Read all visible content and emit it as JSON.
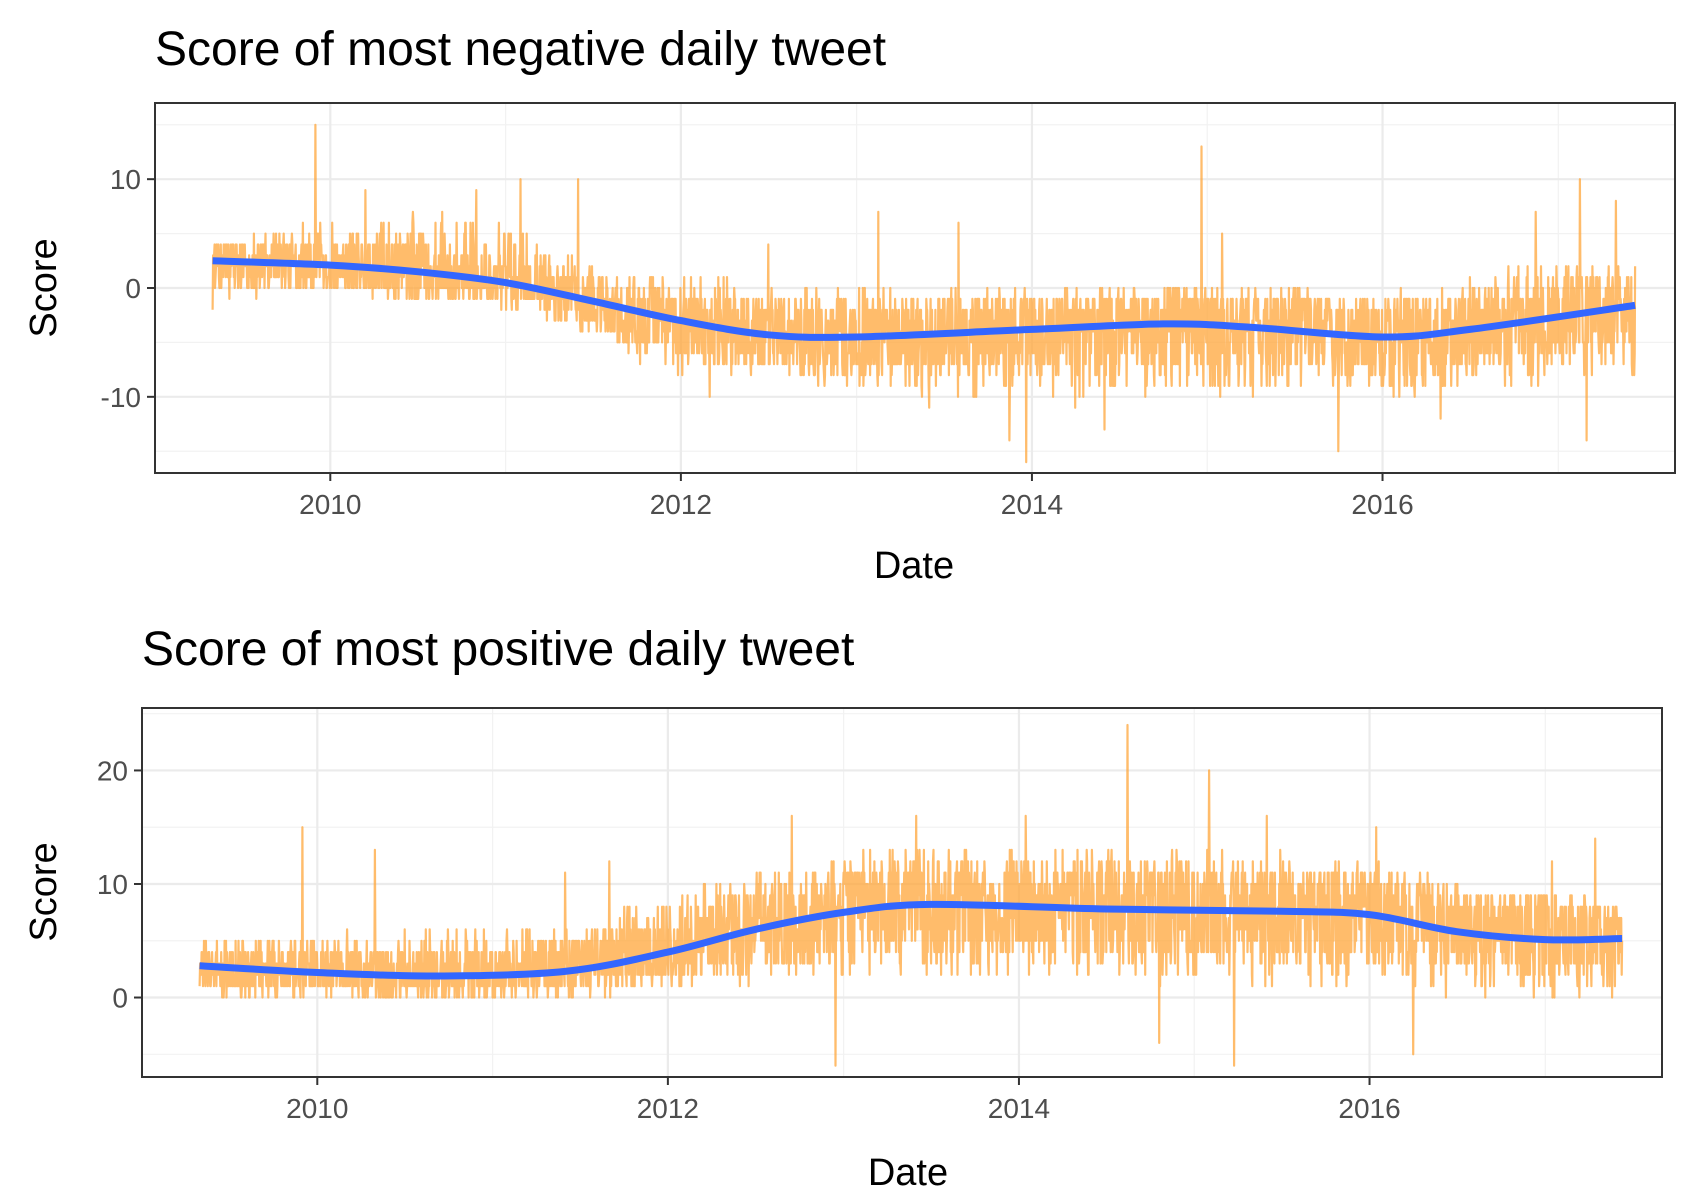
{
  "chart_data": [
    {
      "type": "line",
      "title": "Score of most negative daily tweet",
      "xlabel": "Date",
      "ylabel": "Score",
      "xlim": [
        "2009-01-01",
        "2017-09-01"
      ],
      "ylim": [
        -17,
        17
      ],
      "x_ticks": [
        "2010",
        "2012",
        "2014",
        "2016"
      ],
      "y_ticks": [
        "10",
        "0",
        "-10"
      ],
      "y_tick_values": [
        10,
        0,
        -10
      ],
      "grid": true,
      "series": [
        {
          "kind": "daily-score",
          "color": "#ffa539",
          "x_range": [
            "2009-05-01",
            "2017-06-10"
          ],
          "envelope": [
            {
              "date": "2009-05-01",
              "low": -2,
              "high": 4,
              "mid": 2.5
            },
            {
              "date": "2009-12-01",
              "low": 0,
              "high": 6,
              "mid": 2.2
            },
            {
              "date": "2010-06-01",
              "low": -1,
              "high": 7,
              "mid": 1.5
            },
            {
              "date": "2011-01-01",
              "low": 0,
              "high": 6,
              "mid": 0.5
            },
            {
              "date": "2011-07-01",
              "low": -5,
              "high": 2,
              "mid": -1.5
            },
            {
              "date": "2012-01-01",
              "low": -8,
              "high": 1,
              "mid": -3.5
            },
            {
              "date": "2012-10-01",
              "low": -9,
              "high": 0,
              "mid": -4.5
            },
            {
              "date": "2013-09-01",
              "low": -10,
              "high": 0,
              "mid": -4
            },
            {
              "date": "2014-10-01",
              "low": -10,
              "high": 0,
              "mid": -3.5
            },
            {
              "date": "2015-09-01",
              "low": -10,
              "high": 0,
              "mid": -4
            },
            {
              "date": "2016-02-01",
              "low": -10,
              "high": 0,
              "mid": -4.5
            },
            {
              "date": "2016-11-01",
              "low": -9,
              "high": 2,
              "mid": -3
            },
            {
              "date": "2017-06-10",
              "low": -8,
              "high": 2,
              "mid": -1.5
            }
          ],
          "spikes": [
            {
              "date": "2009-12-01",
              "value": 15
            },
            {
              "date": "2010-03-15",
              "value": 9
            },
            {
              "date": "2010-11-01",
              "value": 9
            },
            {
              "date": "2011-02-01",
              "value": 10
            },
            {
              "date": "2011-06-01",
              "value": 10
            },
            {
              "date": "2012-03-01",
              "value": -10
            },
            {
              "date": "2012-07-01",
              "value": 4
            },
            {
              "date": "2013-02-15",
              "value": 7
            },
            {
              "date": "2013-06-01",
              "value": -11
            },
            {
              "date": "2013-08-01",
              "value": 6
            },
            {
              "date": "2013-11-15",
              "value": -14
            },
            {
              "date": "2013-12-20",
              "value": -16
            },
            {
              "date": "2014-04-01",
              "value": -11
            },
            {
              "date": "2014-06-01",
              "value": -13
            },
            {
              "date": "2014-12-20",
              "value": 13
            },
            {
              "date": "2015-02-01",
              "value": 5
            },
            {
              "date": "2015-10-01",
              "value": -15
            },
            {
              "date": "2016-05-01",
              "value": -12
            },
            {
              "date": "2016-11-15",
              "value": 7
            },
            {
              "date": "2017-02-15",
              "value": 10
            },
            {
              "date": "2017-03-01",
              "value": -14
            },
            {
              "date": "2017-05-01",
              "value": 8
            }
          ]
        },
        {
          "kind": "smooth",
          "color": "#3366ff",
          "points": [
            {
              "date": "2009-05-01",
              "value": 2.5
            },
            {
              "date": "2010-01-01",
              "value": 2.1
            },
            {
              "date": "2010-07-01",
              "value": 1.5
            },
            {
              "date": "2011-01-01",
              "value": 0.5
            },
            {
              "date": "2011-07-01",
              "value": -1.2
            },
            {
              "date": "2012-01-01",
              "value": -3.0
            },
            {
              "date": "2012-07-01",
              "value": -4.3
            },
            {
              "date": "2013-01-01",
              "value": -4.5
            },
            {
              "date": "2014-01-01",
              "value": -3.8
            },
            {
              "date": "2014-10-01",
              "value": -3.3
            },
            {
              "date": "2015-04-01",
              "value": -3.6
            },
            {
              "date": "2016-01-01",
              "value": -4.5
            },
            {
              "date": "2016-07-01",
              "value": -3.8
            },
            {
              "date": "2017-06-10",
              "value": -1.6
            }
          ]
        }
      ]
    },
    {
      "type": "line",
      "title": "Score of most positive daily tweet",
      "xlabel": "Date",
      "ylabel": "Score",
      "xlim": [
        "2009-01-01",
        "2017-09-01"
      ],
      "ylim": [
        -7,
        25.5
      ],
      "x_ticks": [
        "2010",
        "2012",
        "2014",
        "2016"
      ],
      "y_ticks": [
        "20",
        "10",
        "0"
      ],
      "y_tick_values": [
        20,
        10,
        0
      ],
      "grid": true,
      "series": [
        {
          "kind": "daily-score",
          "color": "#ffa539",
          "x_range": [
            "2009-05-01",
            "2017-06-10"
          ],
          "envelope": [
            {
              "date": "2009-05-01",
              "low": 0,
              "high": 5,
              "mid": 2.5
            },
            {
              "date": "2010-06-01",
              "low": 0,
              "high": 6,
              "mid": 2
            },
            {
              "date": "2011-01-01",
              "low": 0,
              "high": 6,
              "mid": 2
            },
            {
              "date": "2011-07-01",
              "low": 0,
              "high": 7,
              "mid": 3
            },
            {
              "date": "2012-01-01",
              "low": 1,
              "high": 9,
              "mid": 4
            },
            {
              "date": "2012-07-01",
              "low": 1,
              "high": 11,
              "mid": 6
            },
            {
              "date": "2013-04-01",
              "low": 2,
              "high": 13,
              "mid": 8
            },
            {
              "date": "2014-04-01",
              "low": 2,
              "high": 13,
              "mid": 7.8
            },
            {
              "date": "2015-04-01",
              "low": 1,
              "high": 13,
              "mid": 7.5
            },
            {
              "date": "2016-01-01",
              "low": 1,
              "high": 12,
              "mid": 7.5
            },
            {
              "date": "2016-07-01",
              "low": 0,
              "high": 10,
              "mid": 6
            },
            {
              "date": "2017-06-10",
              "low": 0,
              "high": 9,
              "mid": 5.2
            }
          ],
          "spikes": [
            {
              "date": "2009-12-01",
              "value": 15
            },
            {
              "date": "2010-05-01",
              "value": 13
            },
            {
              "date": "2011-06-01",
              "value": 11
            },
            {
              "date": "2011-09-01",
              "value": 12
            },
            {
              "date": "2012-09-15",
              "value": 16
            },
            {
              "date": "2012-12-15",
              "value": -6
            },
            {
              "date": "2013-06-01",
              "value": 16
            },
            {
              "date": "2014-01-15",
              "value": 16
            },
            {
              "date": "2014-08-15",
              "value": 24
            },
            {
              "date": "2014-10-20",
              "value": -4
            },
            {
              "date": "2015-02-01",
              "value": 20
            },
            {
              "date": "2015-03-25",
              "value": -6
            },
            {
              "date": "2015-06-01",
              "value": 16
            },
            {
              "date": "2016-01-15",
              "value": 15
            },
            {
              "date": "2016-04-01",
              "value": -5
            },
            {
              "date": "2017-01-15",
              "value": 12
            },
            {
              "date": "2017-04-15",
              "value": 14
            }
          ]
        },
        {
          "kind": "smooth",
          "color": "#3366ff",
          "points": [
            {
              "date": "2009-05-01",
              "value": 2.8
            },
            {
              "date": "2010-01-01",
              "value": 2.2
            },
            {
              "date": "2010-09-01",
              "value": 1.9
            },
            {
              "date": "2011-06-01",
              "value": 2.3
            },
            {
              "date": "2012-01-01",
              "value": 4.0
            },
            {
              "date": "2012-07-01",
              "value": 6.0
            },
            {
              "date": "2013-01-01",
              "value": 7.5
            },
            {
              "date": "2013-07-01",
              "value": 8.2
            },
            {
              "date": "2014-07-01",
              "value": 7.8
            },
            {
              "date": "2015-07-01",
              "value": 7.6
            },
            {
              "date": "2016-01-01",
              "value": 7.3
            },
            {
              "date": "2016-07-01",
              "value": 5.8
            },
            {
              "date": "2017-01-01",
              "value": 5.1
            },
            {
              "date": "2017-06-10",
              "value": 5.2
            }
          ]
        }
      ]
    }
  ]
}
